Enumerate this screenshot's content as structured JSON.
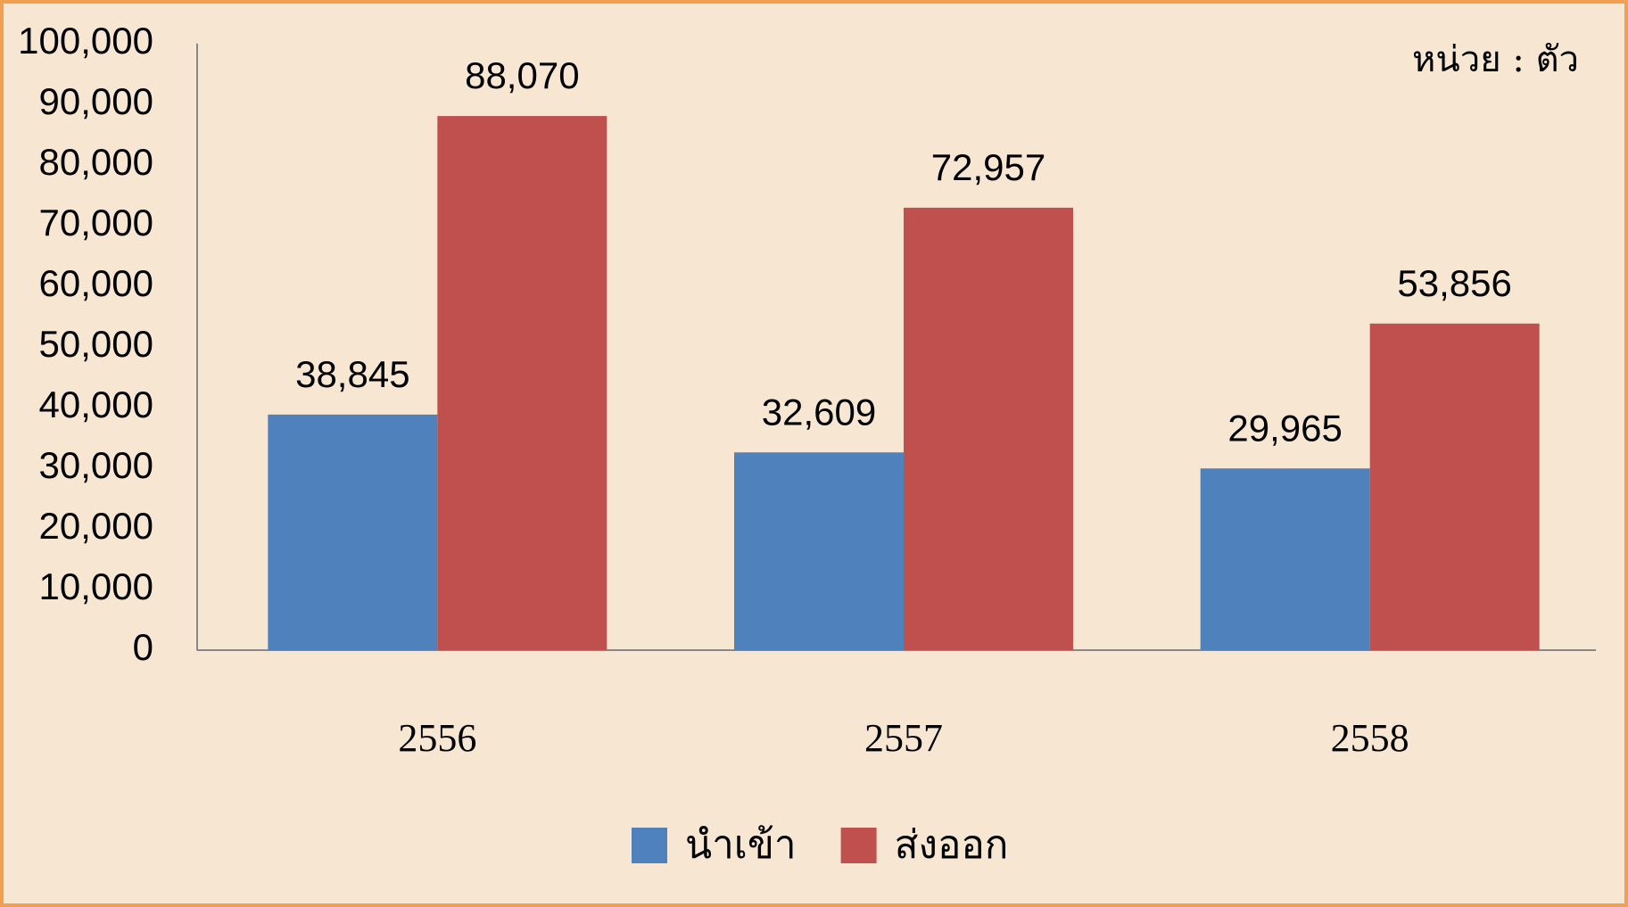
{
  "chart_data": {
    "type": "bar",
    "annotation": "หน่วย : ตัว",
    "categories": [
      "2556",
      "2557",
      "2558"
    ],
    "series": [
      {
        "name": "นำเข้า",
        "color": "#4f81bd",
        "values": [
          38845,
          32609,
          29965
        ],
        "value_labels": [
          "38,845",
          "32,609",
          "29,965"
        ]
      },
      {
        "name": "ส่งออก",
        "color": "#c0504d",
        "values": [
          88070,
          72957,
          53856
        ],
        "value_labels": [
          "88,070",
          "72,957",
          "53,856"
        ]
      }
    ],
    "ylim": [
      0,
      100000
    ],
    "yticks": [
      0,
      {
        "value": 10000,
        "label": "10,000"
      },
      {
        "value": 20000,
        "label": "20,000"
      },
      {
        "value": 30000,
        "label": "30,000"
      },
      {
        "value": 40000,
        "label": "40,000"
      },
      {
        "value": 50000,
        "label": "50,000"
      },
      {
        "value": 60000,
        "label": "60,000"
      },
      {
        "value": 70000,
        "label": "70,000"
      },
      {
        "value": 80000,
        "label": "80,000"
      },
      {
        "value": 90000,
        "label": "90,000"
      },
      {
        "value": 100000,
        "label": "100,000"
      }
    ],
    "grid": false,
    "legend": "bottom"
  }
}
